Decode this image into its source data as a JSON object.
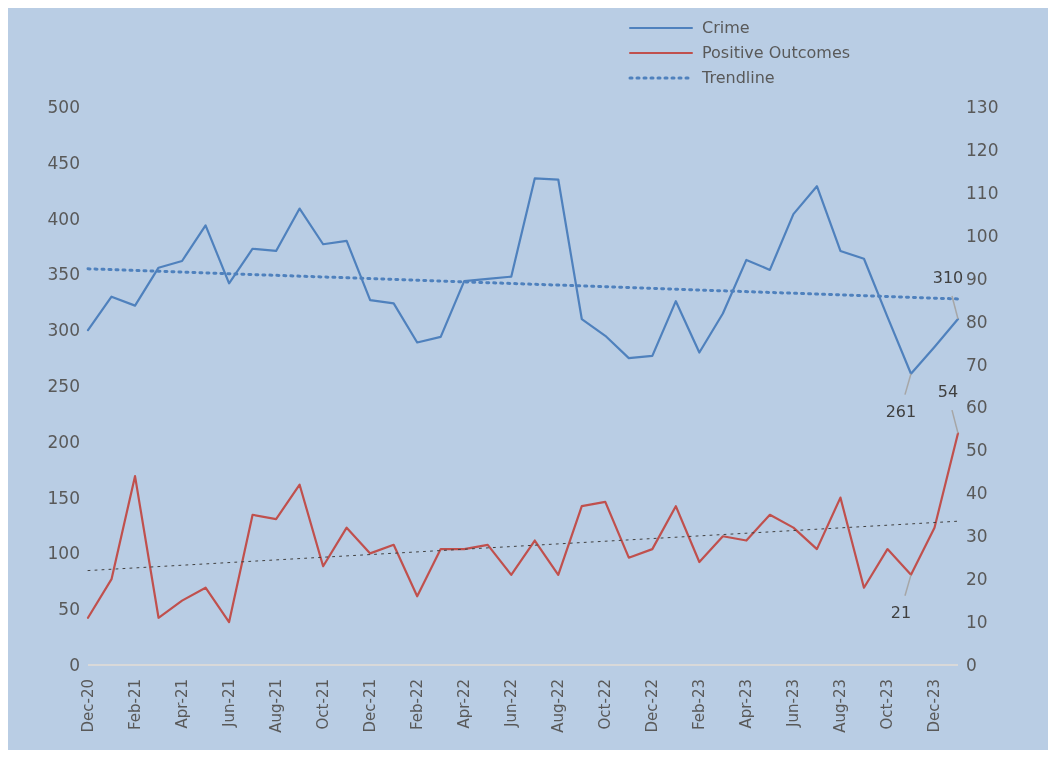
{
  "chart_data": {
    "type": "line",
    "categories": [
      "Dec-20",
      null,
      "Feb-21",
      null,
      "Apr-21",
      null,
      "Jun-21",
      null,
      "Aug-21",
      null,
      "Oct-21",
      null,
      "Dec-21",
      null,
      "Feb-22",
      null,
      "Apr-22",
      null,
      "Jun-22",
      null,
      "Aug-22",
      null,
      "Oct-22",
      null,
      "Dec-22",
      null,
      "Feb-23",
      null,
      "Apr-23",
      null,
      "Jun-23",
      null,
      "Aug-23",
      null,
      "Oct-23",
      null,
      "Dec-23",
      null
    ],
    "series": [
      {
        "name": "Crime",
        "color": "#4f81bd",
        "values": [
          300,
          330,
          322,
          356,
          362,
          394,
          342,
          373,
          371,
          409,
          377,
          380,
          327,
          324,
          289,
          294,
          344,
          346,
          348,
          436,
          435,
          310,
          295,
          275,
          277,
          326,
          280,
          315,
          363,
          354,
          404,
          429,
          371,
          364,
          312,
          261,
          285,
          310
        ],
        "value_labels": [
          null,
          null,
          null,
          null,
          null,
          null,
          null,
          null,
          null,
          null,
          null,
          null,
          null,
          null,
          null,
          null,
          null,
          null,
          null,
          null,
          null,
          null,
          null,
          null,
          null,
          null,
          null,
          null,
          null,
          null,
          null,
          null,
          null,
          null,
          null,
          "261",
          null,
          "310"
        ]
      },
      {
        "name": "Positive Outcomes",
        "color": "#c0504d",
        "axis": "y2",
        "values": [
          11,
          20,
          44,
          11,
          15,
          18,
          10,
          35,
          34,
          42,
          23,
          32,
          26,
          28,
          16,
          27,
          27,
          28,
          21,
          29,
          21,
          37,
          38,
          25,
          27,
          37,
          24,
          30,
          29,
          35,
          32,
          27,
          39,
          18,
          27,
          21,
          32,
          54
        ],
        "value_labels": [
          null,
          null,
          null,
          null,
          null,
          null,
          null,
          null,
          null,
          null,
          null,
          null,
          null,
          null,
          null,
          null,
          null,
          null,
          null,
          null,
          null,
          null,
          null,
          null,
          null,
          null,
          null,
          null,
          null,
          null,
          null,
          null,
          null,
          null,
          null,
          "21",
          null,
          "54"
        ]
      },
      {
        "name": "Trendline",
        "color": "#4f81bd",
        "line_style": "dotted",
        "values": [
          355,
          null,
          null,
          null,
          null,
          null,
          null,
          null,
          null,
          null,
          null,
          null,
          null,
          null,
          null,
          null,
          null,
          null,
          null,
          null,
          null,
          null,
          null,
          null,
          null,
          null,
          null,
          null,
          null,
          null,
          null,
          null,
          null,
          null,
          null,
          null,
          null,
          328
        ]
      },
      {
        "color": "#404040",
        "axis": "y2",
        "line_style": "dotted",
        "values": [
          22,
          null,
          null,
          null,
          null,
          null,
          null,
          null,
          null,
          null,
          null,
          null,
          null,
          null,
          null,
          null,
          null,
          null,
          null,
          null,
          null,
          null,
          null,
          null,
          null,
          null,
          null,
          null,
          null,
          null,
          null,
          null,
          null,
          null,
          null,
          null,
          null,
          33.5
        ]
      }
    ],
    "ylim": [
      0,
      500
    ],
    "yticks": [
      0,
      50,
      100,
      150,
      200,
      250,
      300,
      350,
      400,
      450,
      500
    ],
    "y2lim": [
      0,
      130
    ],
    "y2ticks": [
      0,
      10,
      20,
      30,
      40,
      50,
      60,
      70,
      80,
      90,
      100,
      110,
      120,
      130
    ],
    "legend": "top"
  }
}
